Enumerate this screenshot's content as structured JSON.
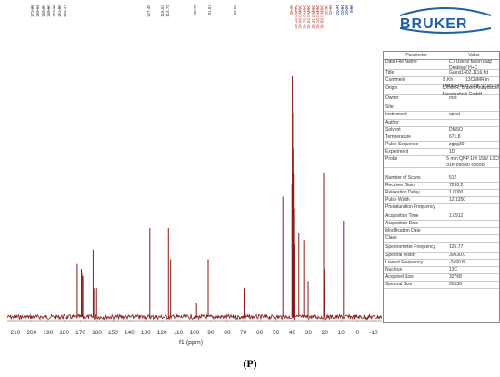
{
  "logo": {
    "text": "BRUKER"
  },
  "chart_data": {
    "type": "line",
    "xlabel": "f1 (ppm)",
    "xlim": [
      215,
      -15
    ],
    "x_reversed": true,
    "x_ticks": [
      "210",
      "200",
      "190",
      "180",
      "170",
      "160",
      "150",
      "140",
      "130",
      "120",
      "110",
      "100",
      "90",
      "80",
      "70",
      "60",
      "50",
      "40",
      "30",
      "20",
      "10",
      "0",
      "-10"
    ],
    "series_color": "#8b1a1a",
    "peaks": [
      {
        "ppm": 172.06,
        "h": 0.22
      },
      {
        "ppm": 169.51,
        "h": 0.2
      },
      {
        "ppm": 169.2,
        "h": 0.18
      },
      {
        "ppm": 168.6,
        "h": 0.17
      },
      {
        "ppm": 162.28,
        "h": 0.28
      },
      {
        "ppm": 161.89,
        "h": 0.12
      },
      {
        "ppm": 160.17,
        "h": 0.12
      },
      {
        "ppm": 127.45,
        "h": 0.37
      },
      {
        "ppm": 116.04,
        "h": 0.37
      },
      {
        "ppm": 114.71,
        "h": 0.24
      },
      {
        "ppm": 98.78,
        "h": 0.06
      },
      {
        "ppm": 91.62,
        "h": 0.24
      },
      {
        "ppm": 69.58,
        "h": 0.12
      },
      {
        "ppm": 45.73,
        "h": 0.5
      },
      {
        "ppm": 40.15,
        "h": 0.55
      },
      {
        "ppm": 39.94,
        "h": 1.0
      },
      {
        "ppm": 39.73,
        "h": 0.85
      },
      {
        "ppm": 39.52,
        "h": 0.7
      },
      {
        "ppm": 39.31,
        "h": 0.6
      },
      {
        "ppm": 39.1,
        "h": 0.45
      },
      {
        "ppm": 38.89,
        "h": 0.3
      },
      {
        "ppm": 35.93,
        "h": 0.35
      },
      {
        "ppm": 32.91,
        "h": 0.32
      },
      {
        "ppm": 30.21,
        "h": 0.15
      },
      {
        "ppm": 20.71,
        "h": 0.6
      },
      {
        "ppm": 20.51,
        "h": 0.2
      },
      {
        "ppm": 20.29,
        "h": 0.15
      },
      {
        "ppm": 8.55,
        "h": 0.4
      }
    ],
    "peak_labels_black": [
      "172.06",
      "169.51",
      "169.20",
      "168.60",
      "162.28",
      "161.89",
      "160.17",
      "127.45",
      "116.04",
      "114.71",
      "98.78",
      "91.62",
      "69.58"
    ],
    "peak_labels_red": [
      "45.73",
      "40.15 DMSO",
      "39.94 DMSO",
      "39.73 DMSO",
      "39.52 DMSO",
      "39.31 DMSO",
      "39.10 DMSO",
      "38.89 DMSO",
      "35.93",
      "32.91"
    ],
    "peak_labels_blue": [
      "20.71",
      "20.51",
      "20.29",
      "8.55"
    ]
  },
  "params": {
    "header_param": "Parameter",
    "header_value": "Value",
    "rows": [
      {
        "k": "Data File Name",
        "v": "C:/ Users/ fakon iraq/\nDesktop/ H+C"
      },
      {
        "k": "Title",
        "v": "Guest1402.1116.fid"
      },
      {
        "k": "Comment",
        "v": "B.Kh          13CNMR in\nDMSO-d6 at 298K 02.05.24"
      },
      {
        "k": "Origin",
        "v": "UXNMR, Bruker Analytische\nMesstechnik GmbH"
      },
      {
        "k": "Owner",
        "v": "root"
      },
      {
        "k": "Site",
        "v": ""
      },
      {
        "k": "Instrument",
        "v": "spect"
      },
      {
        "k": "Author",
        "v": ""
      },
      {
        "k": "Solvent",
        "v": "DMSO"
      },
      {
        "k": "Temperature",
        "v": "671.8"
      },
      {
        "k": "Pulse Sequence",
        "v": "zgpg30"
      },
      {
        "k": "Experiment",
        "v": "1D"
      },
      {
        "k": "Probe",
        "v": "5 mm QNP 1H/ 15N/ 13C/\n31P Z8002/ 0305B"
      },
      {
        "k": "Number of Scans",
        "v": "512"
      },
      {
        "k": "Receiver Gain",
        "v": "7298.2"
      },
      {
        "k": "Relaxation Delay",
        "v": "1.0000"
      },
      {
        "k": "Pulse Width",
        "v": "12.1250"
      },
      {
        "k": "Presaturation Frequency",
        "v": ""
      },
      {
        "k": "Acquisition Time",
        "v": "1.0912"
      },
      {
        "k": "Acquisition Date",
        "v": ""
      },
      {
        "k": "Modification Date",
        "v": ""
      },
      {
        "k": "Class",
        "v": ""
      },
      {
        "k": "Spectrometer Frequency",
        "v": "125.77"
      },
      {
        "k": "Spectral Width",
        "v": "30030.0"
      },
      {
        "k": "Lowest Frequency",
        "v": "-2490.8"
      },
      {
        "k": "Nucleus",
        "v": "13C"
      },
      {
        "k": "Acquired Size",
        "v": "32768"
      },
      {
        "k": "Spectral Size",
        "v": "65536"
      }
    ]
  },
  "caption": "(P)"
}
